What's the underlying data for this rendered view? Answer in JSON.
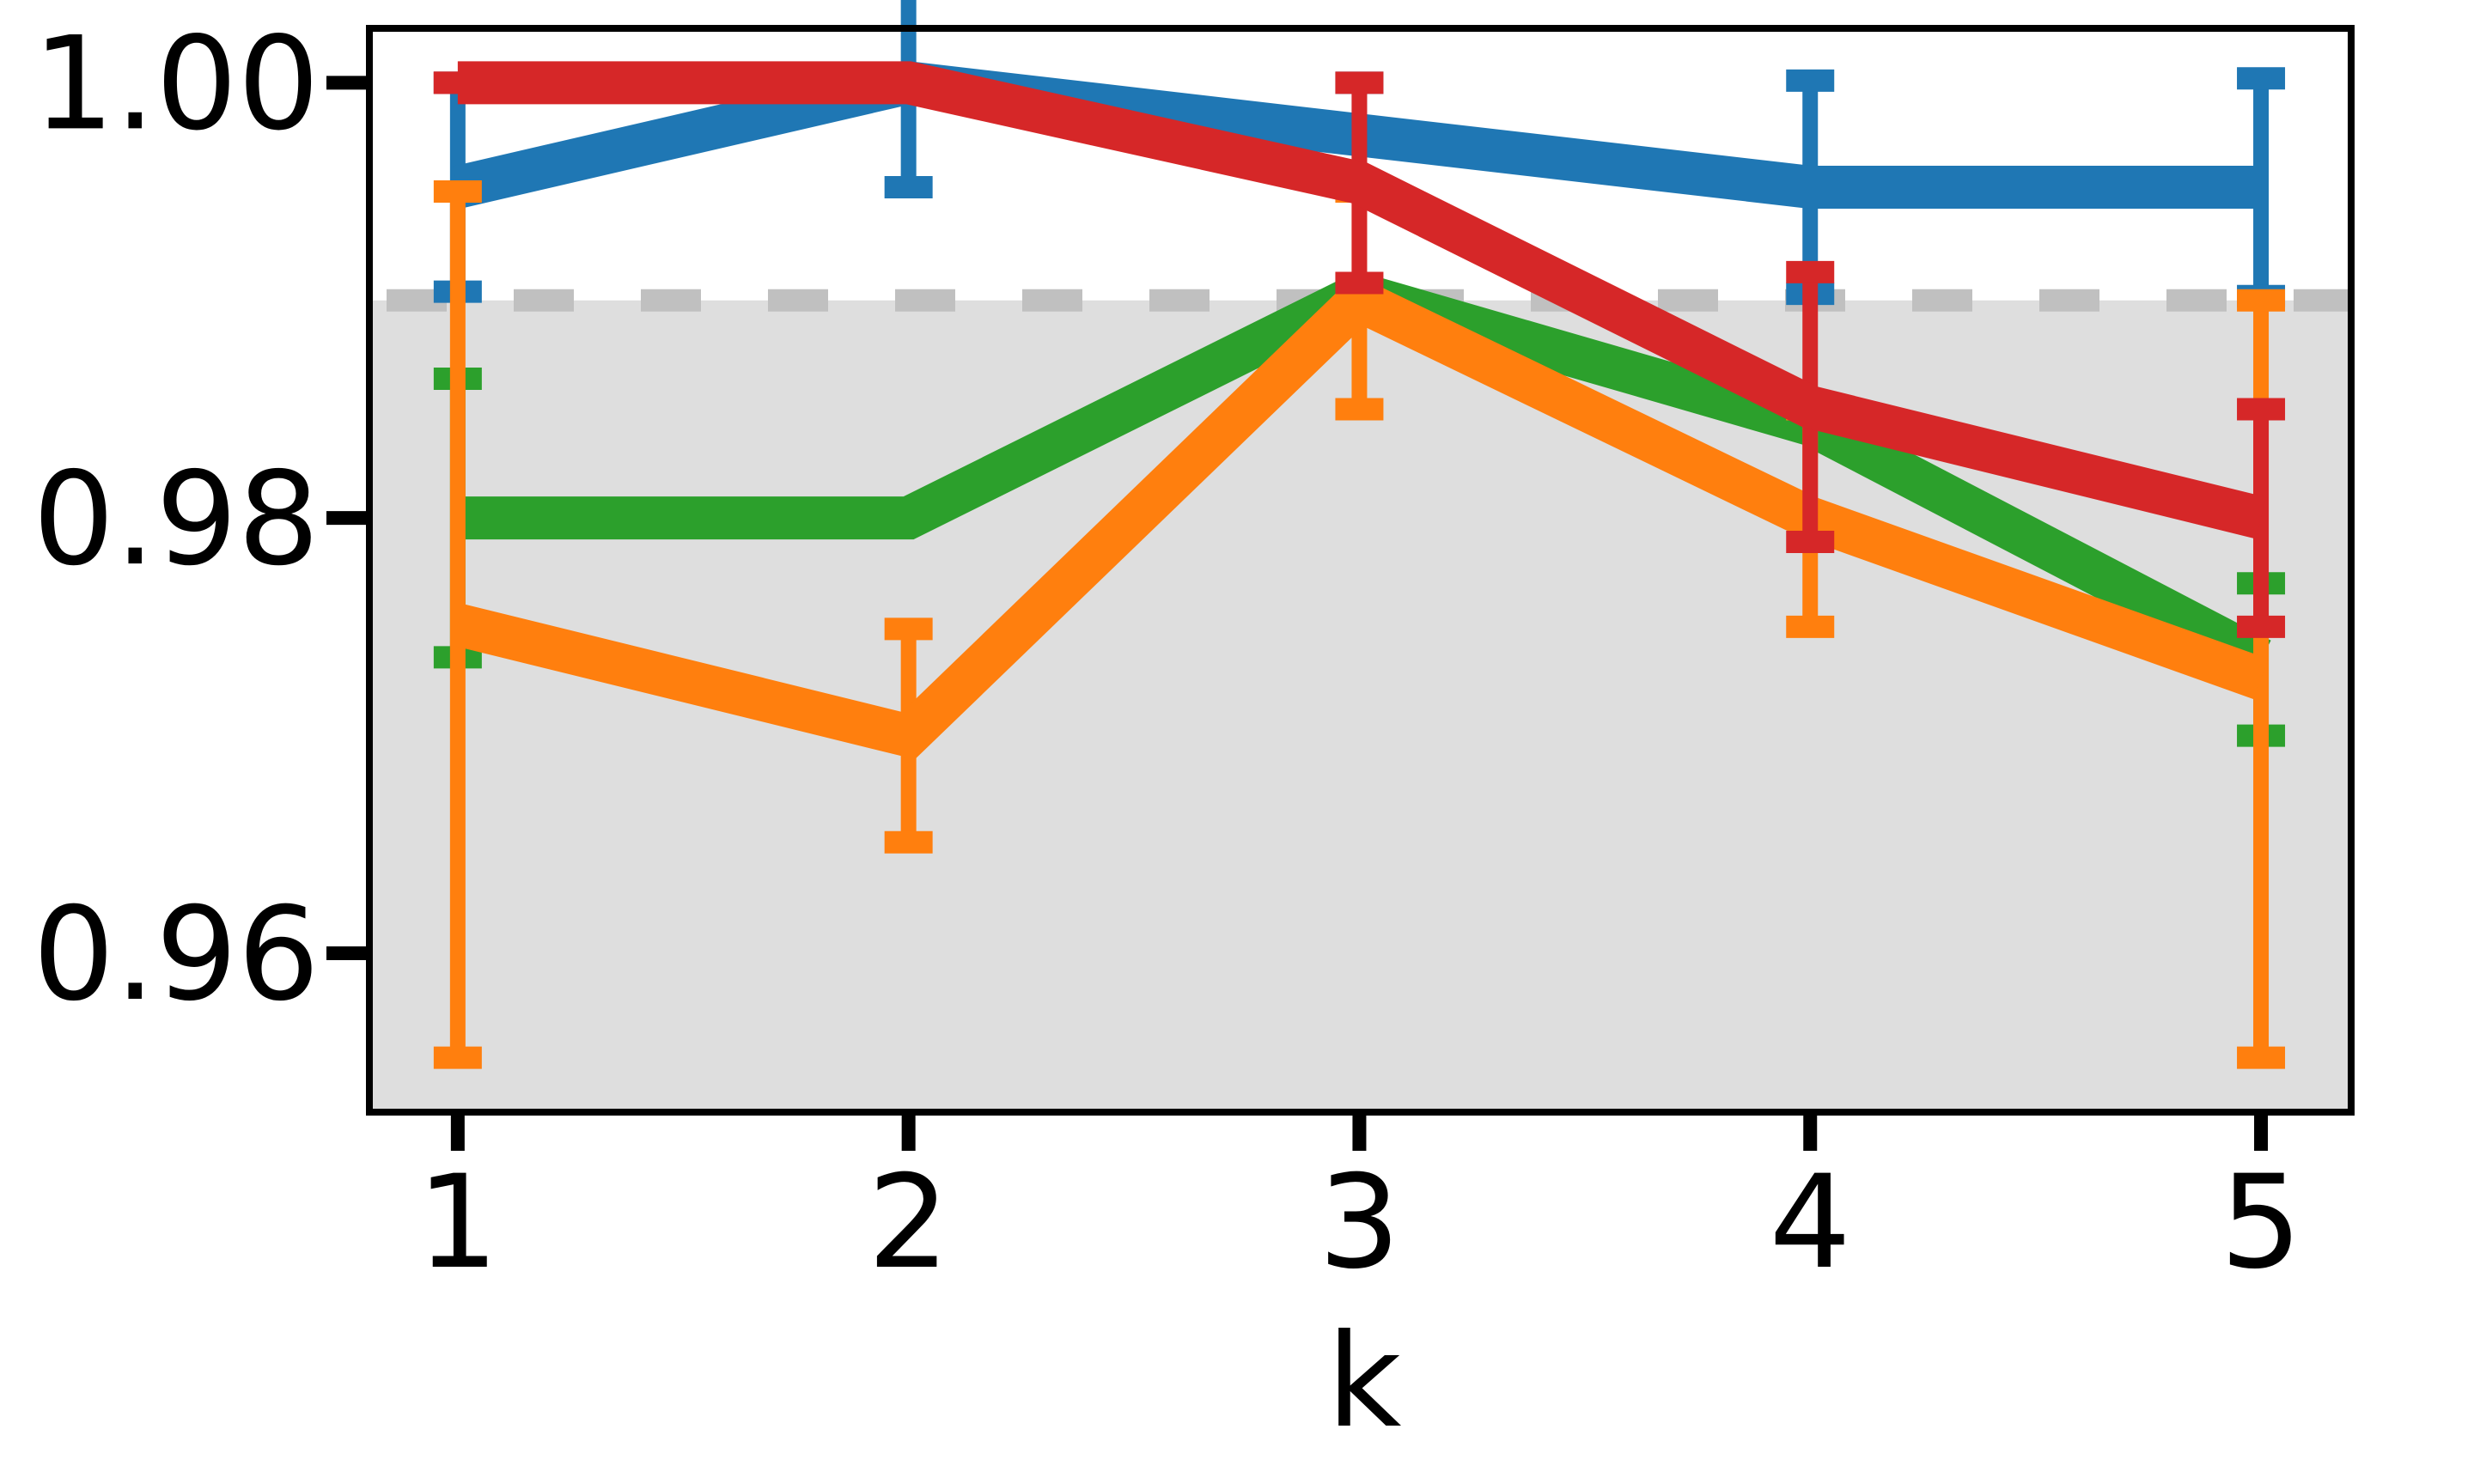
{
  "chart_data": {
    "type": "line",
    "x_label": "k",
    "x": [
      1,
      2,
      3,
      4,
      5
    ],
    "xlim": [
      0.804,
      5.2
    ],
    "xticks": [
      1,
      2,
      3,
      4,
      5
    ],
    "ylim": [
      0.9527,
      1.0025
    ],
    "yticks": [
      0.96,
      0.98,
      {
        "value": 1,
        "label": "1.00"
      }
    ],
    "reference_line": 0.99,
    "shade_below_reference": true,
    "reference_color": "#c0c0c0",
    "shade_color": "#dedede",
    "series": [
      {
        "color": "#1f77b4",
        "values": [
          0.9952,
          1.0,
          0.9976,
          0.9952,
          0.9952
        ],
        "errors": [
          0.0048,
          0.0048,
          0.0024,
          0.0049,
          0.005
        ]
      },
      {
        "color": "#2ca02c",
        "values": [
          0.98,
          0.98,
          0.9903,
          0.9843,
          0.9735
        ],
        "errors": [
          0.0064,
          0.0,
          0.0,
          0.0,
          0.0035
        ]
      },
      {
        "color": "#ff7f0e",
        "values": [
          0.9751,
          0.97,
          0.99,
          0.98,
          0.9726
        ],
        "errors": [
          0.0199,
          0.0049,
          0.005,
          0.005,
          0.0174
        ]
      },
      {
        "color": "#d62728",
        "values": [
          1.0,
          1.0,
          0.9954,
          0.9851,
          0.98
        ],
        "errors": [
          0.0,
          0.0,
          0.0046,
          0.0062,
          0.005
        ]
      }
    ]
  }
}
